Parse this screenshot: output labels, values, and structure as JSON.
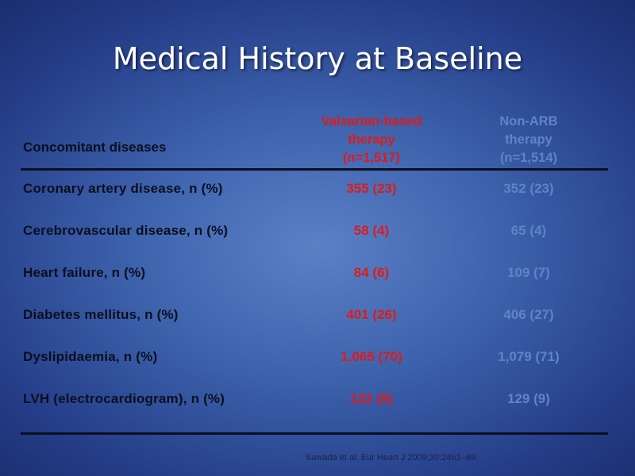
{
  "slide": {
    "title": "Medical History at Baseline"
  },
  "table": {
    "row_header": "Concomitant diseases",
    "columns": [
      {
        "lines": [
          "Valsartan-based",
          "therapy",
          "(n=1,517)"
        ],
        "color": "#e01a1a"
      },
      {
        "lines": [
          "Non-ARB",
          "therapy",
          "(n=1,514)"
        ],
        "color": "#5e84c8"
      }
    ],
    "rows": [
      {
        "label": "Coronary artery disease, n (%)",
        "valsartan": "355 (23)",
        "non_arb": "352 (23)"
      },
      {
        "label": "Cerebrovascular disease, n (%)",
        "valsartan": "58 (4)",
        "non_arb": "65 (4)"
      },
      {
        "label": "Heart failure, n (%)",
        "valsartan": "84 (6)",
        "non_arb": "109 (7)"
      },
      {
        "label": "Diabetes mellitus, n (%)",
        "valsartan": "401 (26)",
        "non_arb": "406 (27)"
      },
      {
        "label": "Dyslipidaemia, n (%)",
        "valsartan": "1,065 (70)",
        "non_arb": "1,079 (71)"
      },
      {
        "label": "LVH (electrocardiogram), n (%)",
        "valsartan": "122 (8)",
        "non_arb": "129 (9)"
      }
    ]
  },
  "citation": "Sawada et al. Eur Heart J 2009;30:2461–69.",
  "colors": {
    "valsartan": "#e01a1a",
    "non_arb": "#5e84c8",
    "text_dark": "#0b0f1e",
    "background": "#4066b0"
  }
}
